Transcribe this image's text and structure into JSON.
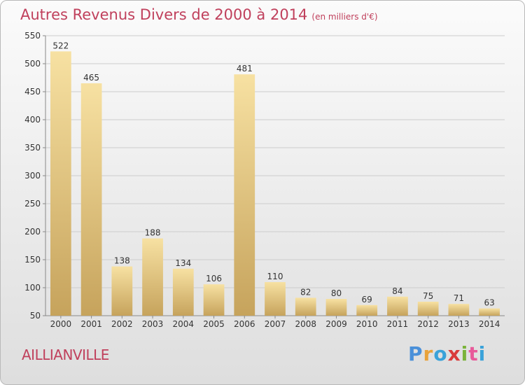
{
  "title": "Autres Revenus Divers de 2000 à 2014",
  "subtitle": "(en milliers d'€)",
  "commune": "AILLIANVILLE",
  "logo": {
    "letters": [
      "P",
      "r",
      "o",
      "x",
      "i",
      "t",
      "i"
    ],
    "colors": [
      "#4a90d9",
      "#e8a23a",
      "#3aa2d9",
      "#d93a3a",
      "#7ab33a",
      "#e85a9a",
      "#3aa2d9"
    ]
  },
  "colors": {
    "title": "#c0405c",
    "bar_light": "#f7e0a0",
    "bar_dark": "#c8a55e",
    "grid": "#cccccc"
  },
  "chart_data": {
    "type": "bar",
    "title": "Autres Revenus Divers de 2000 à 2014",
    "subtitle": "(en milliers d'€)",
    "categories": [
      "2000",
      "2001",
      "2002",
      "2003",
      "2004",
      "2005",
      "2006",
      "2007",
      "2008",
      "2009",
      "2010",
      "2011",
      "2012",
      "2013",
      "2014"
    ],
    "values": [
      522,
      465,
      138,
      188,
      134,
      106,
      481,
      110,
      82,
      80,
      69,
      84,
      75,
      71,
      63
    ],
    "ylim": [
      50,
      550
    ],
    "yticks": [
      50,
      100,
      150,
      200,
      250,
      300,
      350,
      400,
      450,
      500,
      550
    ],
    "grid": true,
    "xlabel": "",
    "ylabel": ""
  }
}
